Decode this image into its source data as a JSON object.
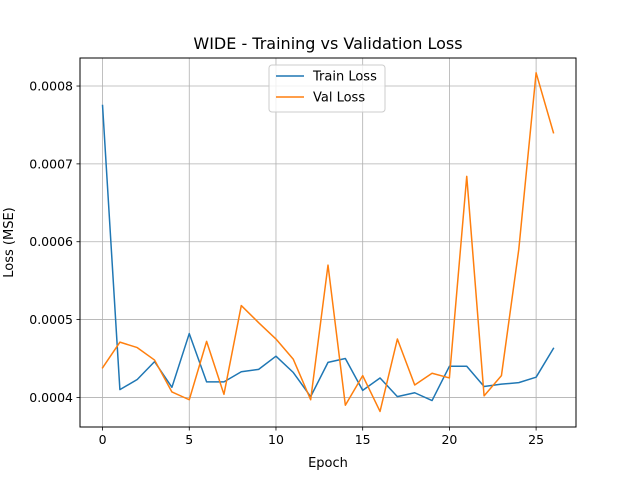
{
  "chart_data": {
    "type": "line",
    "title": "WIDE - Training vs Validation Loss",
    "xlabel": "Epoch",
    "ylabel": "Loss (MSE)",
    "xlim": [
      -1.3,
      27.3
    ],
    "ylim": [
      0.000362,
      0.000836
    ],
    "xticks": [
      0,
      5,
      10,
      15,
      20,
      25
    ],
    "xtick_labels": [
      "0",
      "5",
      "10",
      "15",
      "20",
      "25"
    ],
    "yticks": [
      0.0004,
      0.0005,
      0.0006,
      0.0007,
      0.0008
    ],
    "ytick_labels": [
      "0.0004",
      "0.0005",
      "0.0006",
      "0.0007",
      "0.0008"
    ],
    "grid": true,
    "legend_position": "upper center",
    "x": [
      0,
      1,
      2,
      3,
      4,
      5,
      6,
      7,
      8,
      9,
      10,
      11,
      12,
      13,
      14,
      15,
      16,
      17,
      18,
      19,
      20,
      21,
      22,
      23,
      24,
      25,
      26
    ],
    "series": [
      {
        "name": "Train Loss",
        "color": "#1f77b4",
        "values": [
          0.000775,
          0.00041,
          0.000423,
          0.000446,
          0.000413,
          0.000482,
          0.00042,
          0.00042,
          0.000433,
          0.000436,
          0.000453,
          0.000432,
          0.000401,
          0.000445,
          0.00045,
          0.000409,
          0.000425,
          0.000401,
          0.000406,
          0.000396,
          0.00044,
          0.00044,
          0.000414,
          0.000417,
          0.000419,
          0.000426,
          0.000463
        ]
      },
      {
        "name": "Val Loss",
        "color": "#ff7f0e",
        "values": [
          0.000438,
          0.000471,
          0.000464,
          0.000448,
          0.000407,
          0.000397,
          0.000472,
          0.000404,
          0.000518,
          0.000496,
          0.000475,
          0.000449,
          0.000397,
          0.00057,
          0.00039,
          0.000428,
          0.000382,
          0.000475,
          0.000416,
          0.000431,
          0.000425,
          0.000684,
          0.000402,
          0.000428,
          0.00059,
          0.000817,
          0.00074
        ]
      }
    ]
  }
}
